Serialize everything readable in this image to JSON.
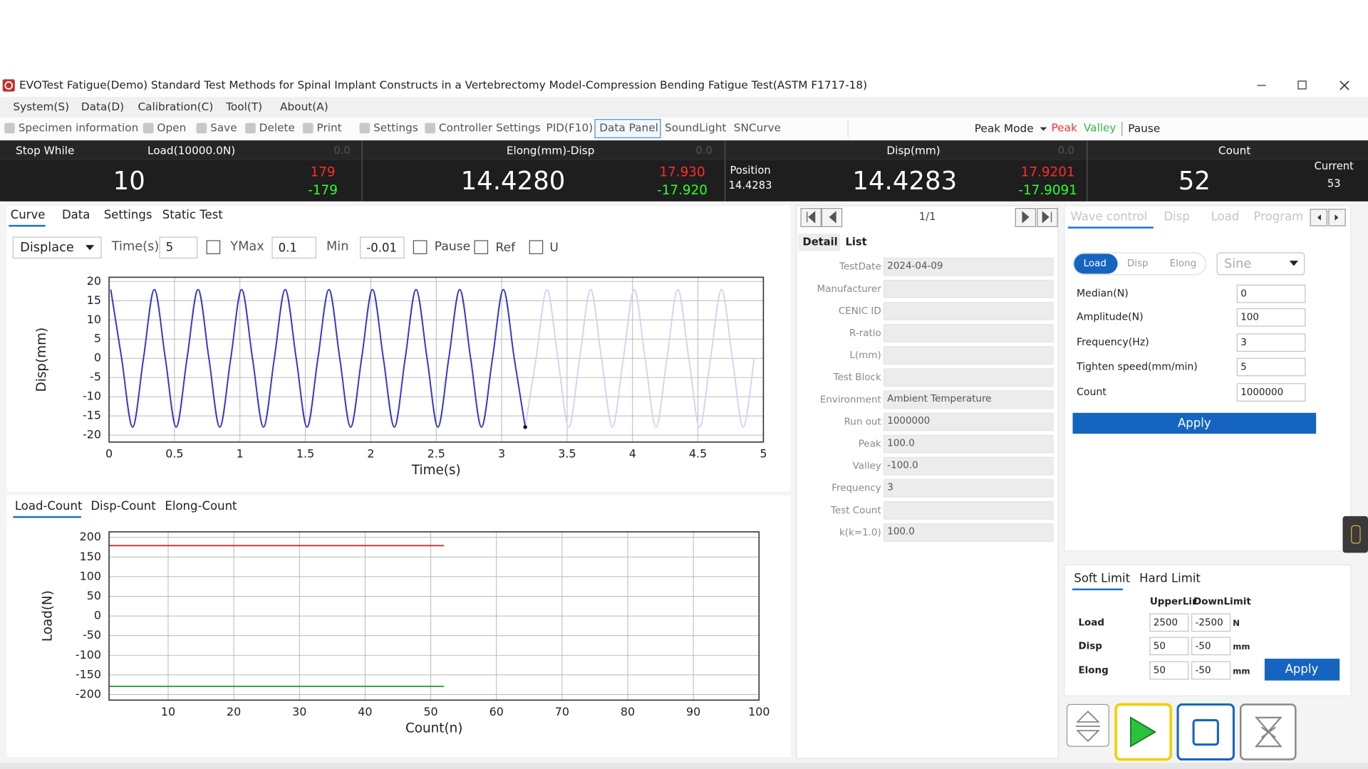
{
  "window": {
    "title": "EVOTest Fatigue(Demo) Standard Test Methods for Spinal Implant Constructs in a Vertebrectomy Model-Compression Bending Fatigue Test(ASTM F1717-18)"
  },
  "menu": [
    "System(S)",
    "Data(D)",
    "Calibration(C)",
    "Tool(T)",
    "About(A)"
  ],
  "toolbar": [
    "Specimen information",
    "Open",
    "Save",
    "Delete",
    "Print",
    "Settings",
    "Controller Settings",
    "PID(F10)",
    "Data Panel",
    "SoundLight",
    "SNCurve"
  ],
  "peak_bar": {
    "mode": "Peak Mode",
    "peak": "Peak",
    "valley": "Valley",
    "pause": "Pause"
  },
  "status": {
    "state": "Stop While",
    "channels": [
      {
        "header": "Load(10000.0N)",
        "zero": "0.0",
        "value": "10",
        "max": "179",
        "min": "-179"
      },
      {
        "header": "Elong(mm)-Disp",
        "zero": "0.0",
        "value": "14.4280",
        "max": "17.930",
        "min": "-17.920"
      },
      {
        "header": "Disp(mm)",
        "zero": "0.0",
        "value": "14.4283",
        "max": "17.9201",
        "min": "-17.9091"
      }
    ],
    "position_label": "Position",
    "position": "14.4283",
    "count_header": "Count",
    "count": "52",
    "current_label": "Current",
    "current": "53"
  },
  "curve_tabs": [
    "Curve",
    "Data",
    "Settings",
    "Static Test"
  ],
  "curve_controls": {
    "channel": "Displace",
    "time_label": "Time(s)",
    "time": "5",
    "ymax_label": "YMax",
    "ymax": "0.1",
    "min_label": "Min",
    "min": "-0.01",
    "pause": "Pause",
    "ref": "Ref",
    "u": "U"
  },
  "curve_chart": {
    "type": "line",
    "xlabel": "Time(s)",
    "ylabel": "Disp(mm)",
    "xlim": [
      0,
      5
    ],
    "ylim": [
      -21.8,
      21.1
    ],
    "xticks": [
      0,
      0.5,
      1,
      1.5,
      2,
      2.5,
      3,
      3.5,
      4,
      4.5,
      5
    ],
    "yticks": [
      20,
      15,
      10,
      5,
      0,
      -5,
      -10,
      -15,
      -20
    ],
    "grid": true,
    "series": [
      {
        "color": "#3434d0",
        "x": [
          0.013,
          0.096,
          0.18,
          0.263,
          0.346,
          0.43,
          0.513,
          0.596,
          0.68,
          0.763,
          0.846,
          0.93,
          1.013,
          1.096,
          1.18,
          1.263,
          1.346,
          1.43,
          1.513,
          1.596,
          1.68,
          1.763,
          1.846,
          1.93,
          2.013,
          2.096,
          2.18,
          2.263,
          2.346,
          2.43,
          2.513,
          2.596,
          2.68,
          2.763,
          2.846,
          2.93,
          3.013,
          3.096,
          3.18
        ],
        "values": [
          17.9,
          0,
          -17.9,
          0,
          17.9,
          0,
          -17.9,
          0,
          17.9,
          0,
          -17.9,
          0,
          17.9,
          0,
          -17.9,
          0,
          17.9,
          0,
          -17.9,
          0,
          17.9,
          0,
          -17.9,
          0,
          17.9,
          0,
          -17.9,
          0,
          17.9,
          0,
          -17.9,
          0,
          17.9,
          0,
          -17.9,
          0,
          17.9,
          0,
          -17.9
        ]
      },
      {
        "color": "#d4d4f2",
        "x": [
          3.18,
          3.263,
          3.346,
          3.43,
          3.513,
          3.596,
          3.68,
          3.763,
          3.846,
          3.93,
          4.013,
          4.096,
          4.18,
          4.263,
          4.346,
          4.43,
          4.513,
          4.596,
          4.68,
          4.763,
          4.846,
          4.93
        ],
        "values": [
          -17.9,
          0,
          17.9,
          0,
          -17.9,
          0,
          17.9,
          0,
          -17.9,
          0,
          17.9,
          0,
          -17.9,
          0,
          17.9,
          0,
          -17.9,
          0,
          17.9,
          0,
          -17.9,
          0
        ]
      }
    ]
  },
  "count_tabs": [
    "Load-Count",
    "Disp-Count",
    "Elong-Count"
  ],
  "count_chart": {
    "type": "line",
    "xlabel": "Count(n)",
    "ylabel": "Load(N)",
    "xlim": [
      1,
      100
    ],
    "ylim": [
      -214,
      214
    ],
    "xticks": [
      10,
      20,
      30,
      40,
      50,
      60,
      70,
      80,
      90,
      100
    ],
    "yticks": [
      200,
      150,
      100,
      50,
      0,
      -50,
      -100,
      -150,
      -200
    ],
    "grid": true,
    "series": [
      {
        "color": "#d03a3a",
        "x": [
          1,
          13,
          26,
          39,
          52
        ],
        "values": [
          179,
          179,
          179,
          179,
          179
        ]
      },
      {
        "color": "#2f9e3a",
        "x": [
          1,
          13,
          26,
          39,
          52
        ],
        "values": [
          -179,
          -179,
          -179,
          -179,
          -179
        ]
      }
    ]
  },
  "pager": {
    "page": "1/1"
  },
  "detail_tabs": [
    "Detail",
    "List"
  ],
  "detail": [
    {
      "label": "TestDate",
      "value": "2024-04-09"
    },
    {
      "label": "Manufacturer"
    },
    {
      "label": "CENIC ID"
    },
    {
      "label": "R-ratio"
    },
    {
      "label": "L(mm)"
    },
    {
      "label": "Test Block"
    },
    {
      "label": "Environment",
      "value": "Ambient Temperature"
    },
    {
      "label": "Run out",
      "value": "1000000"
    },
    {
      "label": "Peak",
      "value": "100.0"
    },
    {
      "label": "Valley",
      "value": "-100.0"
    },
    {
      "label": "Frequency",
      "value": "3"
    },
    {
      "label": "Test Count"
    },
    {
      "label": "k(k=1.0)",
      "value": "100.0"
    }
  ],
  "wave_tabs": [
    "Wave control",
    "Disp",
    "Load",
    "Program"
  ],
  "wave": {
    "modes": [
      "Load",
      "Disp",
      "Elong"
    ],
    "shape": "Sine",
    "fields": [
      {
        "label": "Median(N)",
        "value": "0"
      },
      {
        "label": "Amplitude(N)",
        "value": "100"
      },
      {
        "label": "Frequency(Hz)",
        "value": "3"
      },
      {
        "label": "Tighten speed(mm/min)",
        "value": "5"
      },
      {
        "label": "Count",
        "value": "1000000"
      }
    ],
    "apply": "Apply"
  },
  "limit_tabs": [
    "Soft Limit",
    "Hard Limit"
  ],
  "limits": {
    "header": [
      "UpperLir",
      "DownLimit"
    ],
    "rows": [
      {
        "name": "Load",
        "upper": "2500",
        "lower": "-2500",
        "unit": "N"
      },
      {
        "name": "Disp",
        "upper": "50",
        "lower": "-50",
        "unit": "mm"
      },
      {
        "name": "Elong",
        "upper": "50",
        "lower": "-50",
        "unit": "mm"
      }
    ],
    "apply": "Apply"
  }
}
